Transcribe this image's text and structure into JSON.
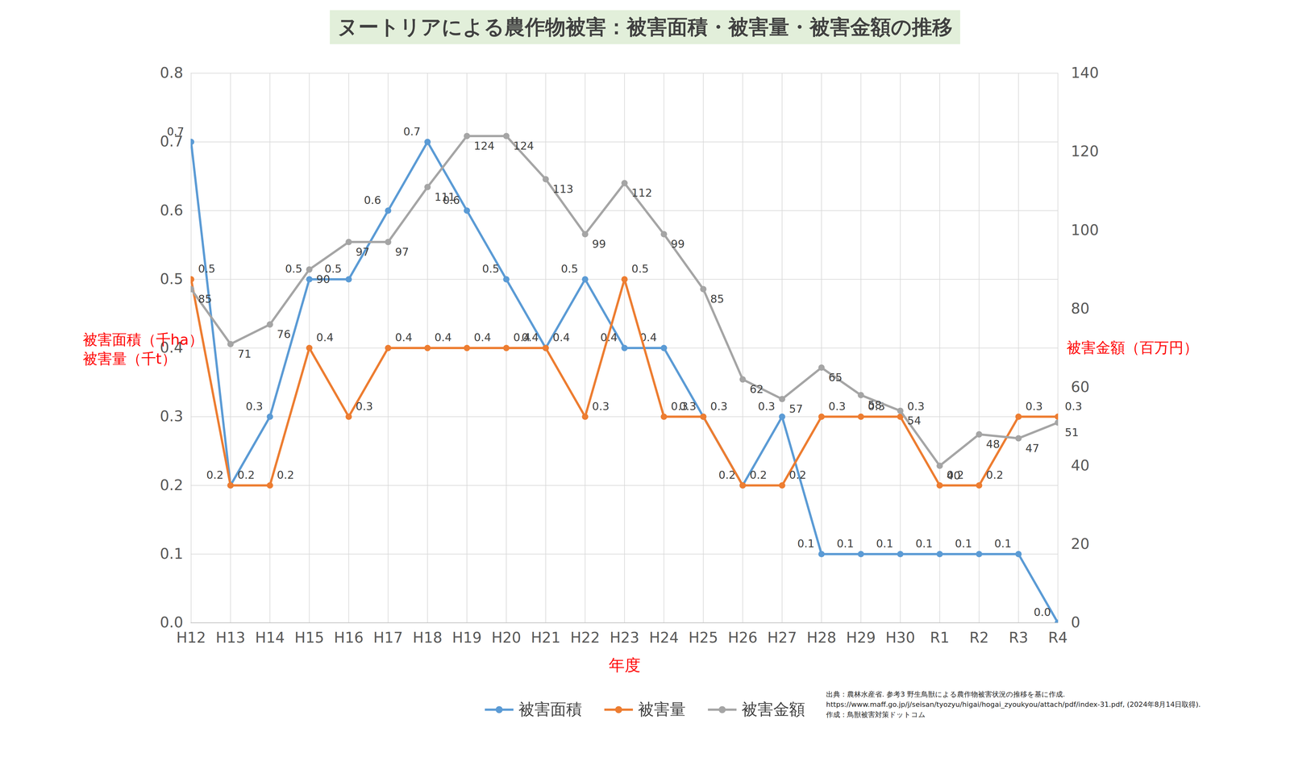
{
  "chart_data": {
    "type": "line",
    "title": "ヌートリアによる農作物被害：被害面積・被害量・被害金額の推移",
    "xlabel": "年度",
    "ylabel": [
      "被害面積（千ha）",
      "被害量（千t）"
    ],
    "y2label": "被害金額（百万円）",
    "categories": [
      "H12",
      "H13",
      "H14",
      "H15",
      "H16",
      "H17",
      "H18",
      "H19",
      "H20",
      "H21",
      "H22",
      "H23",
      "H24",
      "H25",
      "H26",
      "H27",
      "H28",
      "H29",
      "H30",
      "R1",
      "R2",
      "R3",
      "R4"
    ],
    "series": [
      {
        "name": "被害面積",
        "color": "#5b9bd5",
        "marker": "circle",
        "values": [
          0.7,
          0.2,
          0.3,
          0.5,
          0.5,
          0.6,
          0.7,
          0.6,
          0.5,
          0.4,
          0.5,
          0.4,
          0.4,
          0.3,
          0.2,
          0.3,
          0.1,
          0.1,
          0.1,
          0.1,
          0.1,
          0.1,
          0.0
        ],
        "value_labels": [
          "0.7",
          "0.2",
          "0.3",
          "0.5",
          "0.5",
          "0.6",
          "0.7",
          "0.6",
          "0.5",
          "0.4",
          "0.5",
          "0.4",
          "0.4",
          "0.3",
          "0.2",
          "0.3",
          "0.1",
          "0.1",
          "0.1",
          "0.1",
          "0.1",
          "0.1",
          "0.0"
        ]
      },
      {
        "name": "被害量",
        "color": "#ed7d31",
        "marker": "circle",
        "values": [
          0.5,
          0.2,
          0.2,
          0.4,
          0.3,
          0.4,
          0.4,
          0.4,
          0.4,
          0.4,
          0.3,
          0.5,
          0.3,
          0.3,
          0.2,
          0.2,
          0.3,
          0.3,
          0.3,
          0.2,
          0.2,
          0.3,
          0.3
        ]
      },
      {
        "name": "被害金額",
        "color": "#a5a5a5",
        "marker": "circle",
        "axis": "y2",
        "values": [
          85,
          71,
          76,
          90,
          97,
          97,
          111,
          124,
          124,
          113,
          99,
          112,
          99,
          85,
          62,
          57,
          65,
          58,
          54,
          40,
          48,
          47,
          51
        ]
      }
    ],
    "ylim": [
      0,
      0.8
    ],
    "yticks": [
      {
        "value": 0,
        "label": "0.0"
      },
      0.1,
      0.2,
      0.3,
      0.4,
      0.5,
      0.6,
      0.7,
      0.8
    ],
    "y2lim": [
      0,
      140
    ],
    "y2ticks": [
      0,
      20,
      40,
      60,
      80,
      100,
      120,
      140
    ],
    "grid": true,
    "data_labels": true,
    "legend": "bottom",
    "source": [
      "出典：農林水産省. 参考3 野生鳥獣による農作物被害状況の推移を基に作成.",
      "https://www.maff.go.jp/j/seisan/tyozyu/higai/hogai_zyoukyou/attach/pdf/index-31.pdf, (2024年8月14日取得).",
      "作成：鳥獣被害対策ドットコム"
    ]
  }
}
